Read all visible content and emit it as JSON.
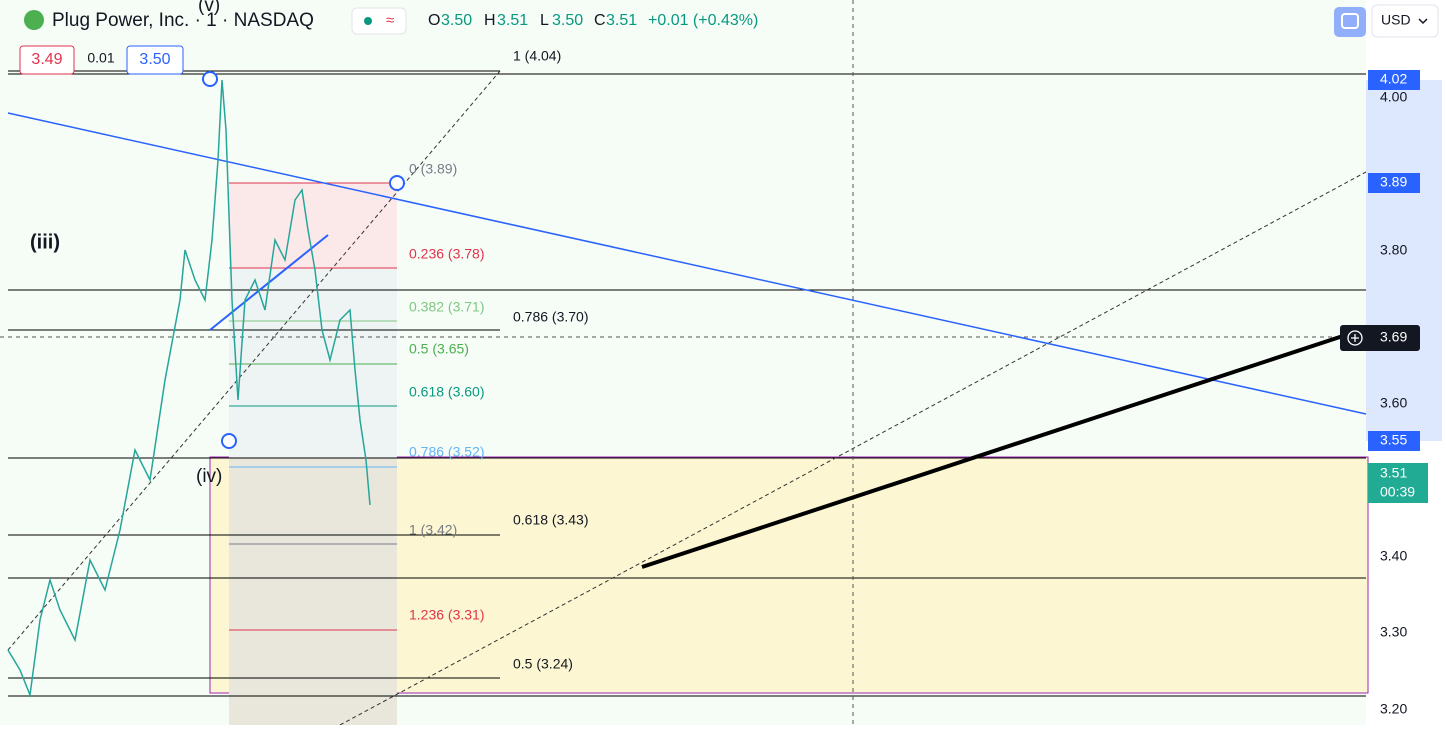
{
  "header": {
    "symbol": "Plug Power, Inc. · 1 · NASDAQ",
    "open_label": "O",
    "open": "3.50",
    "high_label": "H",
    "high": "3.51",
    "low_label": "L",
    "low": "3.50",
    "close_label": "C",
    "close": "3.51",
    "change": "+0.01 (+0.43%)"
  },
  "currency": "USD",
  "order": {
    "sell": "3.49",
    "spread": "0.01",
    "buy": "3.50"
  },
  "price_axis": {
    "ticks": [
      "4.00",
      "3.80",
      "3.60",
      "3.40",
      "3.30",
      "3.20"
    ],
    "badges": [
      "4.02",
      "3.89",
      "3.69",
      "3.55",
      "3.51"
    ],
    "countdown": "00:39"
  },
  "wave_labels": [
    "(v)",
    "(iii)",
    "(iv)"
  ],
  "fib_levels": [
    "0 (3.89)",
    "0.236 (3.78)",
    "0.382 (3.71)",
    "0.5 (3.65)",
    "0.618 (3.60)",
    "0.786 (3.52)",
    "1 (3.42)",
    "1.236 (3.31)"
  ],
  "extension_labels": [
    "1 (4.04)",
    "0.786 (3.70)",
    "0.618 (3.43)",
    "0.5 (3.24)"
  ]
}
